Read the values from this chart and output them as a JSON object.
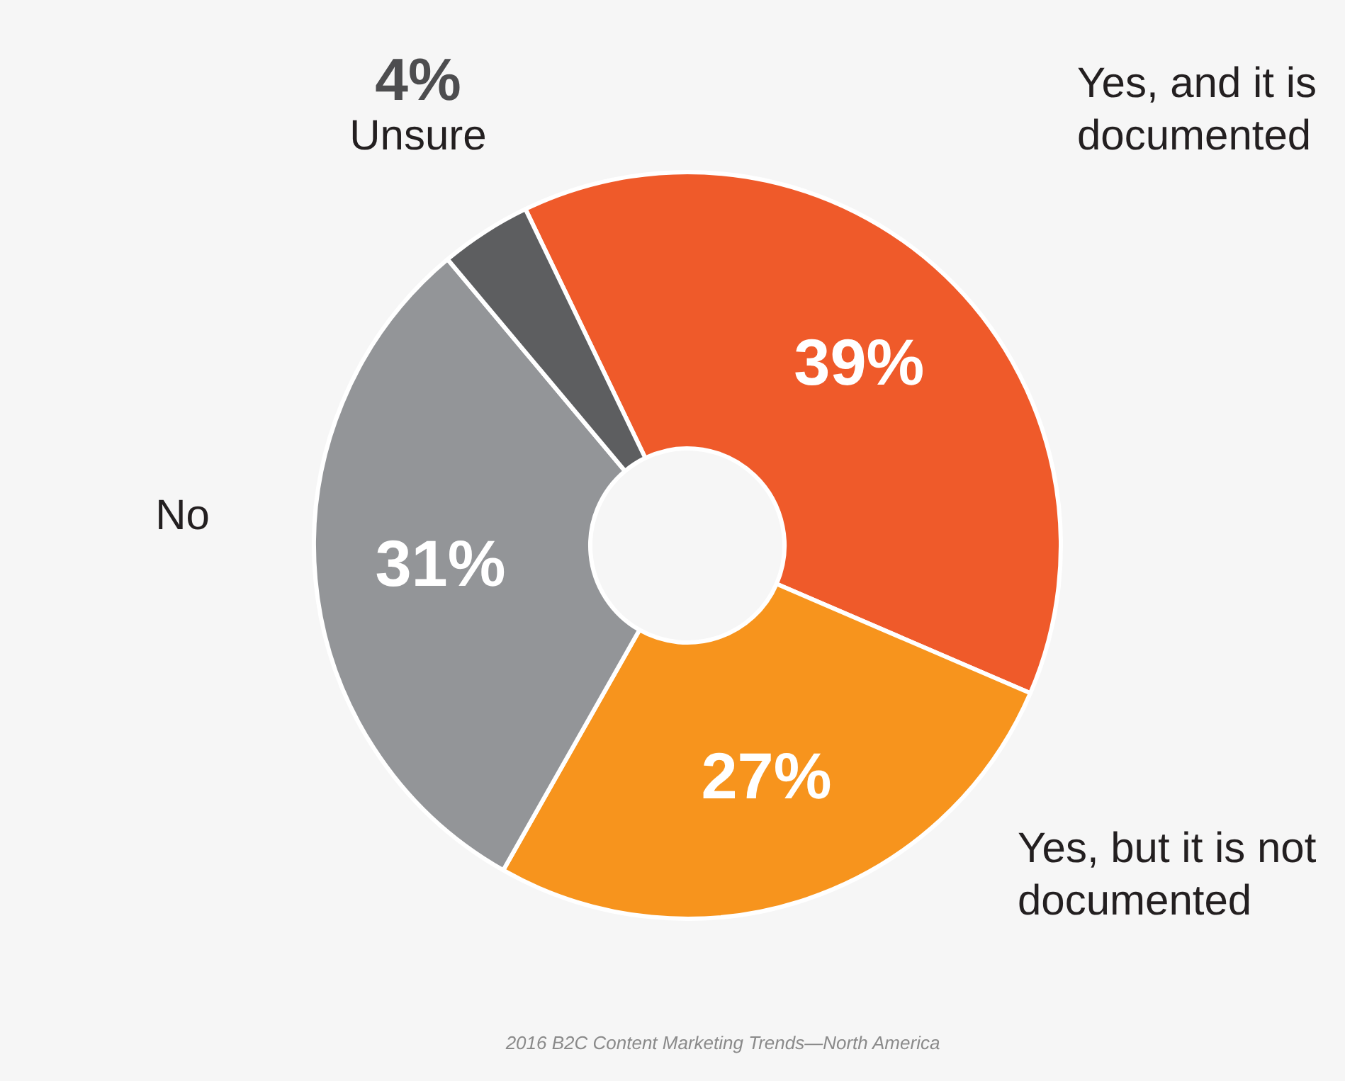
{
  "chart_data": {
    "type": "donut",
    "categories": [
      "Yes, and it is documented",
      "Yes, but it is not documented",
      "No",
      "Unsure"
    ],
    "values": [
      39,
      27,
      31,
      4
    ],
    "value_labels": [
      "39%",
      "27%",
      "31%",
      "4%"
    ],
    "colors": [
      "#ef5a2a",
      "#f7941d",
      "#939598",
      "#5d5e60"
    ],
    "legend": false,
    "annotations": [
      "2016 B2C Content Marketing Trends—North America"
    ]
  }
}
